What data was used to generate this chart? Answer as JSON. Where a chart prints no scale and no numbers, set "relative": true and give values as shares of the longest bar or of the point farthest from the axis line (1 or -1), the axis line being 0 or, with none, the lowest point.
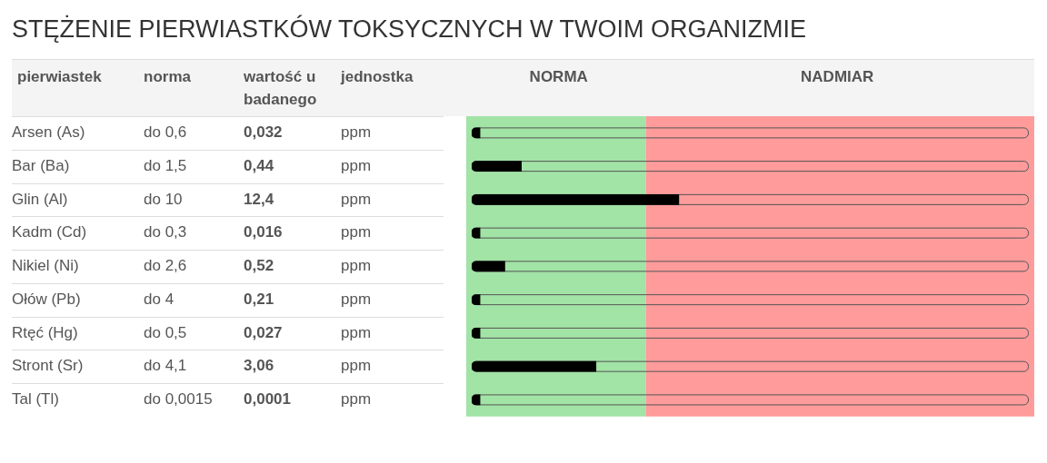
{
  "chart_data": {
    "type": "bar",
    "orientation": "horizontal",
    "relative": true,
    "title": "STĘŻENIE PIERWIASTKÓW TOKSYCZNYCH W TWOIM ORGANIZMIE",
    "ylabel": "pierwiastek",
    "categories": [
      "Arsen (As)",
      "Bar (Ba)",
      "Glin (Al)",
      "Kadm (Cd)",
      "Nikiel (Ni)",
      "Ołów (Pb)",
      "Rtęć (Hg)",
      "Stront (Sr)",
      "Tal (Tl)"
    ],
    "values": [
      0.04,
      0.24,
      1,
      0.04,
      0.16,
      0.04,
      0.04,
      0.6,
      0.04
    ],
    "color": "#000000",
    "bands": [
      {
        "axis": "x",
        "from": 0,
        "to": 0.84,
        "label": "NORMA",
        "color": "#a2e3a6"
      },
      {
        "axis": "x",
        "from": 0.84,
        "to": 2.69,
        "label": "NADMIAR",
        "color": "#ff9b9b"
      }
    ],
    "annotations": [
      "norma",
      "wartość u badanego",
      "jednostka",
      "do 0,6",
      "0,032",
      "ppm",
      "do 1,5",
      "0,44",
      "ppm",
      "do 10",
      "12,4",
      "ppm",
      "do 0,3",
      "0,016",
      "ppm",
      "do 2,6",
      "0,52",
      "ppm",
      "do 4",
      "0,21",
      "ppm",
      "do 0,5",
      "0,027",
      "ppm",
      "do 4,1",
      "3,06",
      "ppm",
      "do 0,0015",
      "0,0001",
      "ppm"
    ]
  }
}
